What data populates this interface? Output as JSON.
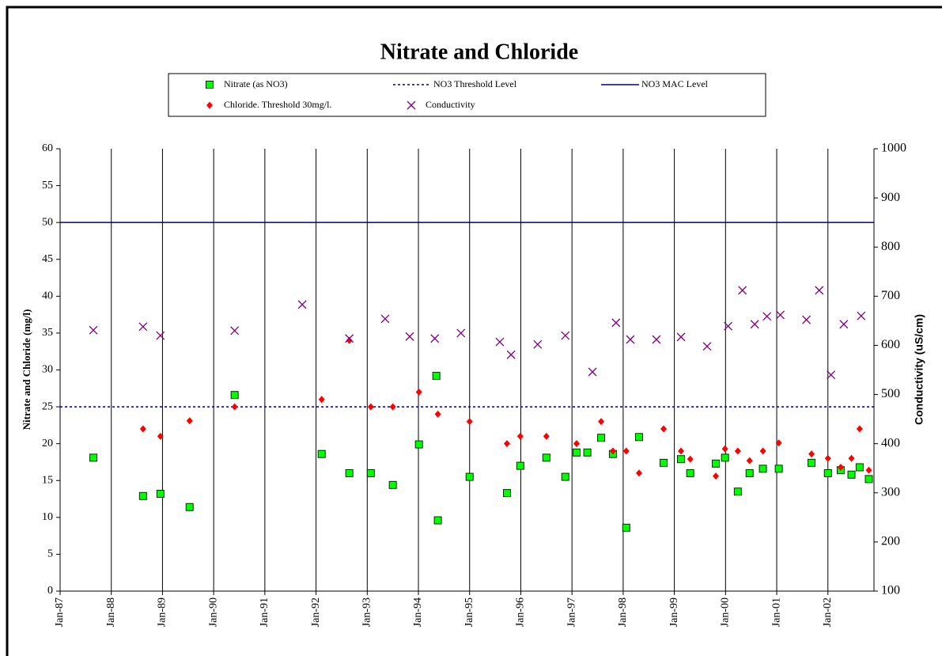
{
  "chart_data": {
    "type": "scatter",
    "title": "Nitrate and Chloride",
    "y_label": "Nitrate and Chloride  (mg/l)",
    "y2_label": "Conductivity (uS/cm)",
    "xlim": [
      1987,
      2002.9
    ],
    "xticks": [
      {
        "value": 1987,
        "label": "Jan-87"
      },
      {
        "value": 1988,
        "label": "Jan-88"
      },
      {
        "value": 1989,
        "label": "Jan-89"
      },
      {
        "value": 1990,
        "label": "Jan-90"
      },
      {
        "value": 1991,
        "label": "Jan-91"
      },
      {
        "value": 1992,
        "label": "Jan-92"
      },
      {
        "value": 1993,
        "label": "Jan-93"
      },
      {
        "value": 1994,
        "label": "Jan-94"
      },
      {
        "value": 1995,
        "label": "Jan-95"
      },
      {
        "value": 1996,
        "label": "Jan-96"
      },
      {
        "value": 1997,
        "label": "Jan-97"
      },
      {
        "value": 1998,
        "label": "Jan-98"
      },
      {
        "value": 1999,
        "label": "Jan-99"
      },
      {
        "value": 2000,
        "label": "Jan-00"
      },
      {
        "value": 2001,
        "label": "Jan-01"
      },
      {
        "value": 2002,
        "label": "Jan-02"
      }
    ],
    "ylim": [
      0,
      60
    ],
    "yticks": [
      0,
      5,
      10,
      15,
      20,
      25,
      30,
      35,
      40,
      45,
      50,
      55,
      60
    ],
    "y2lim": [
      100,
      1000
    ],
    "y2ticks": [
      100,
      200,
      300,
      400,
      500,
      600,
      700,
      800,
      900,
      1000
    ],
    "x_grid": true,
    "series": [
      {
        "name": "Nitrate (as NO3)",
        "marker": "square",
        "color": "#00ff00",
        "x": [
          1987.65,
          1988.62,
          1988.96,
          1989.53,
          1990.41,
          1992.11,
          1992.65,
          1993.07,
          1993.5,
          1994.01,
          1994.35,
          1994.38,
          1995.0,
          1995.73,
          1995.99,
          1996.5,
          1996.87,
          1997.09,
          1997.3,
          1997.57,
          1997.8,
          1998.06,
          1998.31,
          1998.79,
          1999.13,
          1999.31,
          1999.81,
          1999.99,
          2000.24,
          2000.47,
          2000.73,
          2001.04,
          2001.68,
          2002.0,
          2002.25,
          2002.46,
          2002.62,
          2002.8
        ],
        "values": [
          18.1,
          12.9,
          13.2,
          11.4,
          26.6,
          18.6,
          16.0,
          16.0,
          14.4,
          19.9,
          29.2,
          9.6,
          15.5,
          13.3,
          17.0,
          18.1,
          15.5,
          18.8,
          18.8,
          20.8,
          18.6,
          8.6,
          20.9,
          17.4,
          17.9,
          16.0,
          17.3,
          18.1,
          13.5,
          16.0,
          16.6,
          16.6,
          17.4,
          16.0,
          16.4,
          15.8,
          16.8,
          15.2
        ]
      },
      {
        "name": "NO3 Threshold Level",
        "level": 25,
        "style": "dashed",
        "color": "#000080"
      },
      {
        "name": "NO3 MAC Level",
        "level": 50,
        "style": "solid",
        "color": "#000080"
      },
      {
        "name": "Chloride. Threshold 30mg/l.",
        "marker": "diamond",
        "color": "#ff0000",
        "x": [
          1988.62,
          1988.96,
          1989.53,
          1990.41,
          1992.11,
          1992.65,
          1993.07,
          1993.5,
          1994.01,
          1994.38,
          1995.0,
          1995.73,
          1995.99,
          1996.5,
          1997.09,
          1997.57,
          1997.8,
          1998.06,
          1998.31,
          1998.79,
          1999.13,
          1999.31,
          1999.81,
          1999.99,
          2000.24,
          2000.47,
          2000.73,
          2001.04,
          2001.68,
          2002.0,
          2002.25,
          2002.46,
          2002.62,
          2002.8
        ],
        "values": [
          22.0,
          21.0,
          23.1,
          25.0,
          26.0,
          34.0,
          25.0,
          25.0,
          27.0,
          24.0,
          23.0,
          20.0,
          21.0,
          21.0,
          20.0,
          23.0,
          19.0,
          19.0,
          16.0,
          22.0,
          19.0,
          17.9,
          15.6,
          19.3,
          19.0,
          17.7,
          19.0,
          20.1,
          18.6,
          18.0,
          16.8,
          18.0,
          22.0,
          16.4
        ]
      },
      {
        "name": "Conductivity",
        "marker": "cross",
        "color": "#800080",
        "axis": "y2",
        "x": [
          1987.65,
          1988.62,
          1988.96,
          1990.41,
          1991.73,
          1992.65,
          1993.35,
          1993.83,
          1994.32,
          1994.83,
          1995.59,
          1995.81,
          1996.33,
          1996.87,
          1997.4,
          1997.86,
          1998.14,
          1998.65,
          1999.13,
          1999.64,
          2000.05,
          2000.33,
          2000.57,
          2000.81,
          2001.07,
          2001.58,
          2001.83,
          2002.06,
          2002.31,
          2002.65
        ],
        "values": [
          631,
          638,
          620,
          630,
          683,
          614,
          654,
          618,
          614,
          625,
          607,
          581,
          602,
          620,
          546,
          646,
          612,
          612,
          617,
          598,
          639,
          712,
          643,
          659,
          662,
          652,
          712,
          540,
          643,
          660
        ]
      }
    ]
  }
}
